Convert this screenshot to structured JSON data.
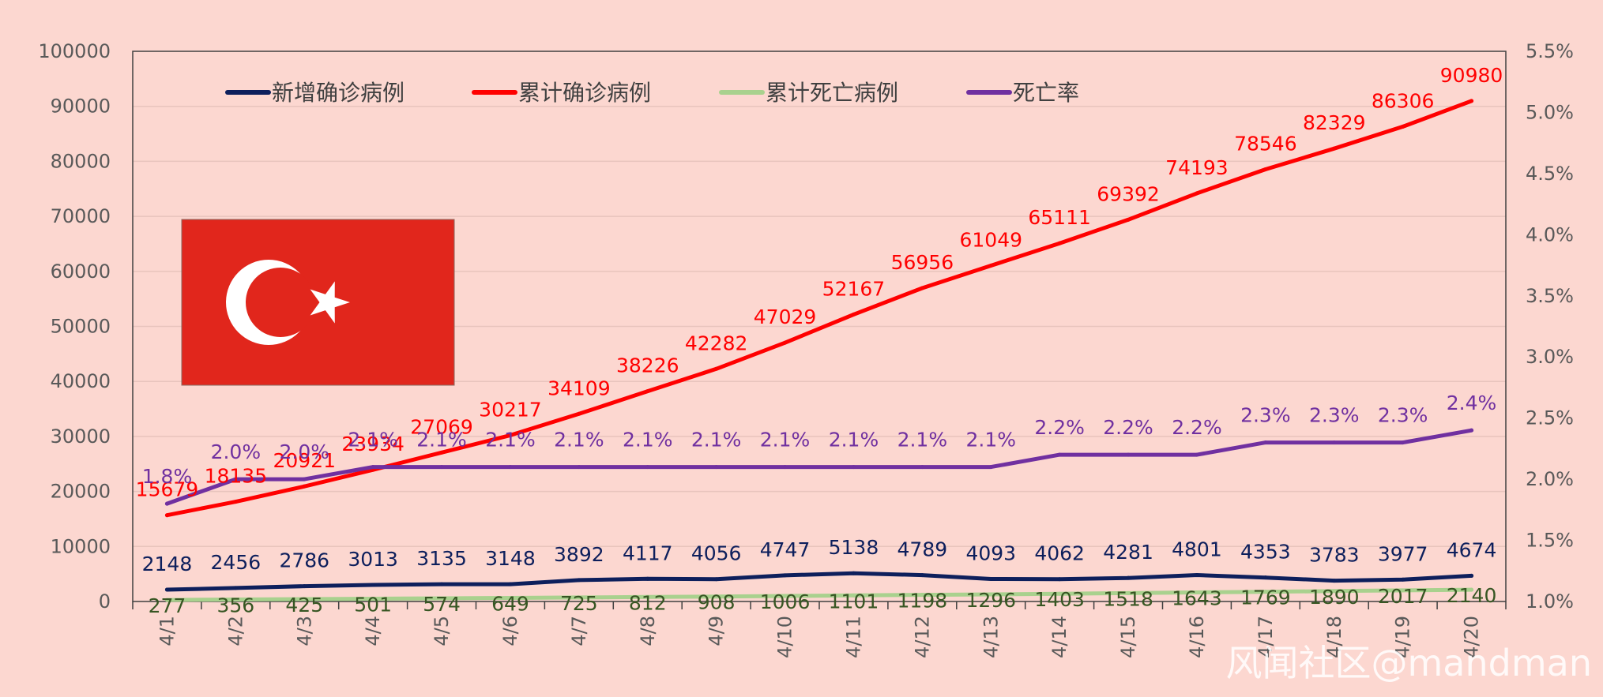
{
  "chart_data": {
    "type": "line",
    "categories": [
      "4/1",
      "4/2",
      "4/3",
      "4/4",
      "4/5",
      "4/6",
      "4/7",
      "4/8",
      "4/9",
      "4/10",
      "4/11",
      "4/12",
      "4/13",
      "4/14",
      "4/15",
      "4/16",
      "4/17",
      "4/18",
      "4/19",
      "4/20"
    ],
    "ylim": [
      0,
      100000
    ],
    "yticks": [
      "0",
      "10000",
      "20000",
      "30000",
      "40000",
      "50000",
      "60000",
      "70000",
      "80000",
      "90000",
      "100000"
    ],
    "y2lim": [
      1.0,
      5.5
    ],
    "y2ticks": [
      "1.0%",
      "1.5%",
      "2.0%",
      "2.5%",
      "3.0%",
      "3.5%",
      "4.0%",
      "4.5%",
      "5.0%",
      "5.5%"
    ],
    "legend_position": "top",
    "grid": true,
    "series": [
      {
        "name": "新增确诊病例",
        "axis": "left",
        "color": "#0d1f5c",
        "values": [
          2148,
          2456,
          2786,
          3013,
          3135,
          3148,
          3892,
          4117,
          4056,
          4747,
          5138,
          4789,
          4093,
          4062,
          4281,
          4801,
          4353,
          3783,
          3977,
          4674
        ],
        "labels": [
          "2148",
          "2456",
          "2786",
          "3013",
          "3135",
          "3148",
          "3892",
          "4117",
          "4056",
          "4747",
          "5138",
          "4789",
          "4093",
          "4062",
          "4281",
          "4801",
          "4353",
          "3783",
          "3977",
          "4674"
        ]
      },
      {
        "name": "累计确诊病例",
        "axis": "left",
        "color": "#ff0000",
        "values": [
          15679,
          18135,
          20921,
          23934,
          27069,
          30217,
          34109,
          38226,
          42282,
          47029,
          52167,
          56956,
          61049,
          65111,
          69392,
          74193,
          78546,
          82329,
          86306,
          90980
        ],
        "labels": [
          "15679",
          "18135",
          "20921",
          "23934",
          "27069",
          "30217",
          "34109",
          "38226",
          "42282",
          "47029",
          "52167",
          "56956",
          "61049",
          "65111",
          "69392",
          "74193",
          "78546",
          "82329",
          "86306",
          "90980"
        ]
      },
      {
        "name": "累计死亡病例",
        "axis": "left",
        "color": "#a9d18e",
        "values": [
          277,
          356,
          425,
          501,
          574,
          649,
          725,
          812,
          908,
          1006,
          1101,
          1198,
          1296,
          1403,
          1518,
          1643,
          1769,
          1890,
          2017,
          2140
        ],
        "labels": [
          "277",
          "356",
          "425",
          "501",
          "574",
          "649",
          "725",
          "812",
          "908",
          "1006",
          "1101",
          "1198",
          "1296",
          "1403",
          "1518",
          "1643",
          "1769",
          "1890",
          "2017",
          "2140"
        ]
      },
      {
        "name": "死亡率",
        "axis": "right",
        "color": "#7030a0",
        "values": [
          1.8,
          2.0,
          2.0,
          2.1,
          2.1,
          2.1,
          2.1,
          2.1,
          2.1,
          2.1,
          2.1,
          2.1,
          2.1,
          2.2,
          2.2,
          2.2,
          2.3,
          2.3,
          2.3,
          2.4
        ],
        "labels": [
          "1.8%",
          "2.0%",
          "2.0%",
          "2.1%",
          "2.1%",
          "2.1%",
          "2.1%",
          "2.1%",
          "2.1%",
          "2.1%",
          "2.1%",
          "2.1%",
          "2.1%",
          "2.2%",
          "2.2%",
          "2.2%",
          "2.3%",
          "2.3%",
          "2.3%",
          "2.4%"
        ]
      }
    ]
  },
  "flag": {
    "name": "turkey-flag",
    "colors": {
      "background": "#e1261c",
      "emblem": "#ffffff"
    }
  },
  "watermark": "风闻社区@mandman"
}
